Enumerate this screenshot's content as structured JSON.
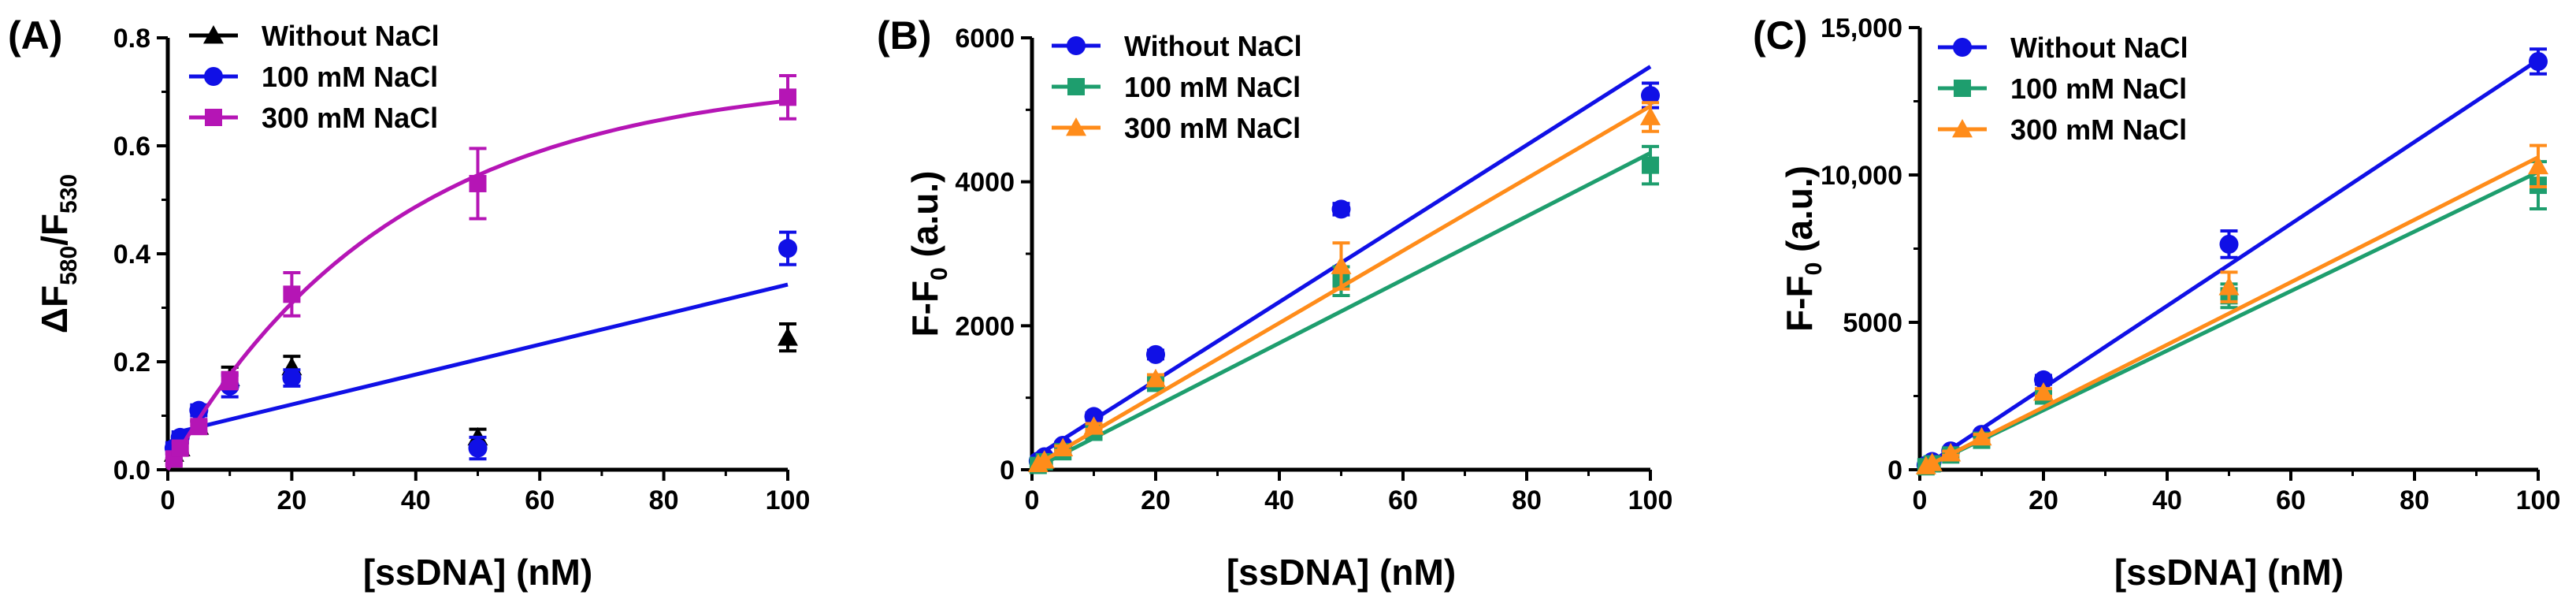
{
  "chart_data": [
    {
      "panel_label": "(A)",
      "type": "scatter",
      "xlabel": "[ssDNA] (nM)",
      "ylabel": "ΔF580/F530",
      "ylabel_parts": {
        "main": "ΔF",
        "sub1": "580",
        "sep": "/F",
        "sub2": "530"
      },
      "xlim": [
        0,
        100
      ],
      "ylim": [
        0,
        0.8
      ],
      "xticks": [
        0,
        20,
        40,
        60,
        80,
        100
      ],
      "xtick_labels": [
        "0",
        "20",
        "40",
        "60",
        "80",
        "100"
      ],
      "yticks": [
        0,
        0.2,
        0.4,
        0.6,
        0.8
      ],
      "ytick_labels": [
        "0.0",
        "0.2",
        "0.4",
        "0.6",
        "0.8"
      ],
      "legend_position": "top-left",
      "series": [
        {
          "name": "Without NaCl",
          "color": "#000000",
          "marker": "triangle",
          "x": [
            1,
            2,
            5,
            10,
            20,
            50,
            100
          ],
          "y": [
            0.03,
            0.04,
            0.08,
            0.17,
            0.19,
            0.06,
            0.245
          ],
          "err": [
            0.01,
            0.01,
            0.01,
            0.02,
            0.02,
            0.015,
            0.025
          ],
          "fit": null
        },
        {
          "name": "100 mM NaCl",
          "color": "#1010e6",
          "marker": "circle",
          "x": [
            1,
            2,
            5,
            10,
            20,
            50,
            100
          ],
          "y": [
            0.04,
            0.06,
            0.11,
            0.155,
            0.17,
            0.04,
            0.41
          ],
          "err": [
            0.01,
            0.01,
            0.01,
            0.02,
            0.015,
            0.02,
            0.03
          ],
          "fit": {
            "kind": "linear",
            "x0": 1,
            "y0": 0.068,
            "x1": 100,
            "y1": 0.343
          }
        },
        {
          "name": "300 mM NaCl",
          "color": "#b515b5",
          "marker": "square",
          "x": [
            1,
            2,
            5,
            10,
            20,
            50,
            100
          ],
          "y": [
            0.02,
            0.04,
            0.08,
            0.165,
            0.325,
            0.53,
            0.69
          ],
          "err": [
            0.01,
            0.01,
            0.01,
            0.015,
            0.04,
            0.065,
            0.04
          ],
          "fit": {
            "kind": "exp",
            "ymax": 0.73,
            "k": 0.0275
          }
        }
      ]
    },
    {
      "panel_label": "(B)",
      "type": "scatter",
      "xlabel": "[ssDNA] (nM)",
      "ylabel": "F-F0 (a.u.)",
      "ylabel_parts": {
        "main": "F-F",
        "sub1": "0",
        "rest": " (a.u.)"
      },
      "xlim": [
        0,
        100
      ],
      "ylim": [
        0,
        6000
      ],
      "xticks": [
        0,
        20,
        40,
        60,
        80,
        100
      ],
      "xtick_labels": [
        "0",
        "20",
        "40",
        "60",
        "80",
        "100"
      ],
      "yticks": [
        0,
        2000,
        4000,
        6000
      ],
      "ytick_labels": [
        "0",
        "2000",
        "4000",
        "6000"
      ],
      "legend_position": "top-left",
      "series": [
        {
          "name": "Without NaCl",
          "color": "#1010e6",
          "marker": "circle",
          "x": [
            1,
            2,
            5,
            10,
            20,
            50,
            100
          ],
          "y": [
            120,
            180,
            340,
            740,
            1600,
            3620,
            5200
          ],
          "err": [
            30,
            30,
            40,
            50,
            60,
            80,
            170
          ],
          "fit": {
            "kind": "linear",
            "x0": 0,
            "y0": 150,
            "x1": 100,
            "y1": 5600
          }
        },
        {
          "name": "100 mM NaCl",
          "color": "#1e9e6e",
          "marker": "square",
          "x": [
            1,
            2,
            5,
            10,
            20,
            50,
            100
          ],
          "y": [
            60,
            110,
            250,
            520,
            1200,
            2620,
            4230
          ],
          "err": [
            20,
            20,
            30,
            40,
            80,
            200,
            260
          ],
          "fit": {
            "kind": "linear",
            "x0": 0,
            "y0": 0,
            "x1": 100,
            "y1": 4400
          }
        },
        {
          "name": "300 mM NaCl",
          "color": "#ff8c1a",
          "marker": "triangle",
          "x": [
            1,
            2,
            5,
            10,
            20,
            50,
            100
          ],
          "y": [
            80,
            130,
            300,
            600,
            1260,
            2830,
            4900
          ],
          "err": [
            20,
            20,
            30,
            40,
            60,
            320,
            200
          ],
          "fit": {
            "kind": "linear",
            "x0": 0,
            "y0": 30,
            "x1": 100,
            "y1": 5050
          }
        }
      ]
    },
    {
      "panel_label": "(C)",
      "type": "scatter",
      "xlabel": "[ssDNA] (nM)",
      "ylabel": "F-F0 (a.u.)",
      "ylabel_parts": {
        "main": "F-F",
        "sub1": "0",
        "rest": " (a.u.)"
      },
      "xlim": [
        0,
        100
      ],
      "ylim": [
        0,
        15000
      ],
      "xticks": [
        0,
        20,
        40,
        60,
        80,
        100
      ],
      "xtick_labels": [
        "0",
        "20",
        "40",
        "60",
        "80",
        "100"
      ],
      "yticks": [
        0,
        5000,
        10000,
        15000
      ],
      "ytick_labels": [
        "0",
        "5000",
        "10,000",
        "15,000"
      ],
      "legend_position": "top-left",
      "series": [
        {
          "name": "Without NaCl",
          "color": "#1010e6",
          "marker": "circle",
          "x": [
            1,
            2,
            5,
            10,
            20,
            50,
            100
          ],
          "y": [
            150,
            280,
            640,
            1200,
            3050,
            7650,
            13850
          ],
          "err": [
            60,
            60,
            80,
            100,
            150,
            450,
            420
          ],
          "fit": {
            "kind": "linear",
            "x0": 0,
            "y0": 0,
            "x1": 100,
            "y1": 13900
          }
        },
        {
          "name": "100 mM NaCl",
          "color": "#1e9e6e",
          "marker": "square",
          "x": [
            1,
            2,
            5,
            10,
            20,
            50,
            100
          ],
          "y": [
            100,
            200,
            500,
            1000,
            2500,
            5900,
            9650
          ],
          "err": [
            50,
            50,
            70,
            100,
            130,
            400,
            800
          ],
          "fit": {
            "kind": "linear",
            "x0": 0,
            "y0": 0,
            "x1": 100,
            "y1": 10100
          }
        },
        {
          "name": "300 mM NaCl",
          "color": "#ff8c1a",
          "marker": "triangle",
          "x": [
            1,
            2,
            5,
            10,
            20,
            50,
            100
          ],
          "y": [
            120,
            230,
            560,
            1100,
            2620,
            6200,
            10300
          ],
          "err": [
            50,
            50,
            70,
            100,
            130,
            500,
            700
          ],
          "fit": {
            "kind": "linear",
            "x0": 0,
            "y0": 0,
            "x1": 100,
            "y1": 10600
          }
        }
      ]
    }
  ]
}
